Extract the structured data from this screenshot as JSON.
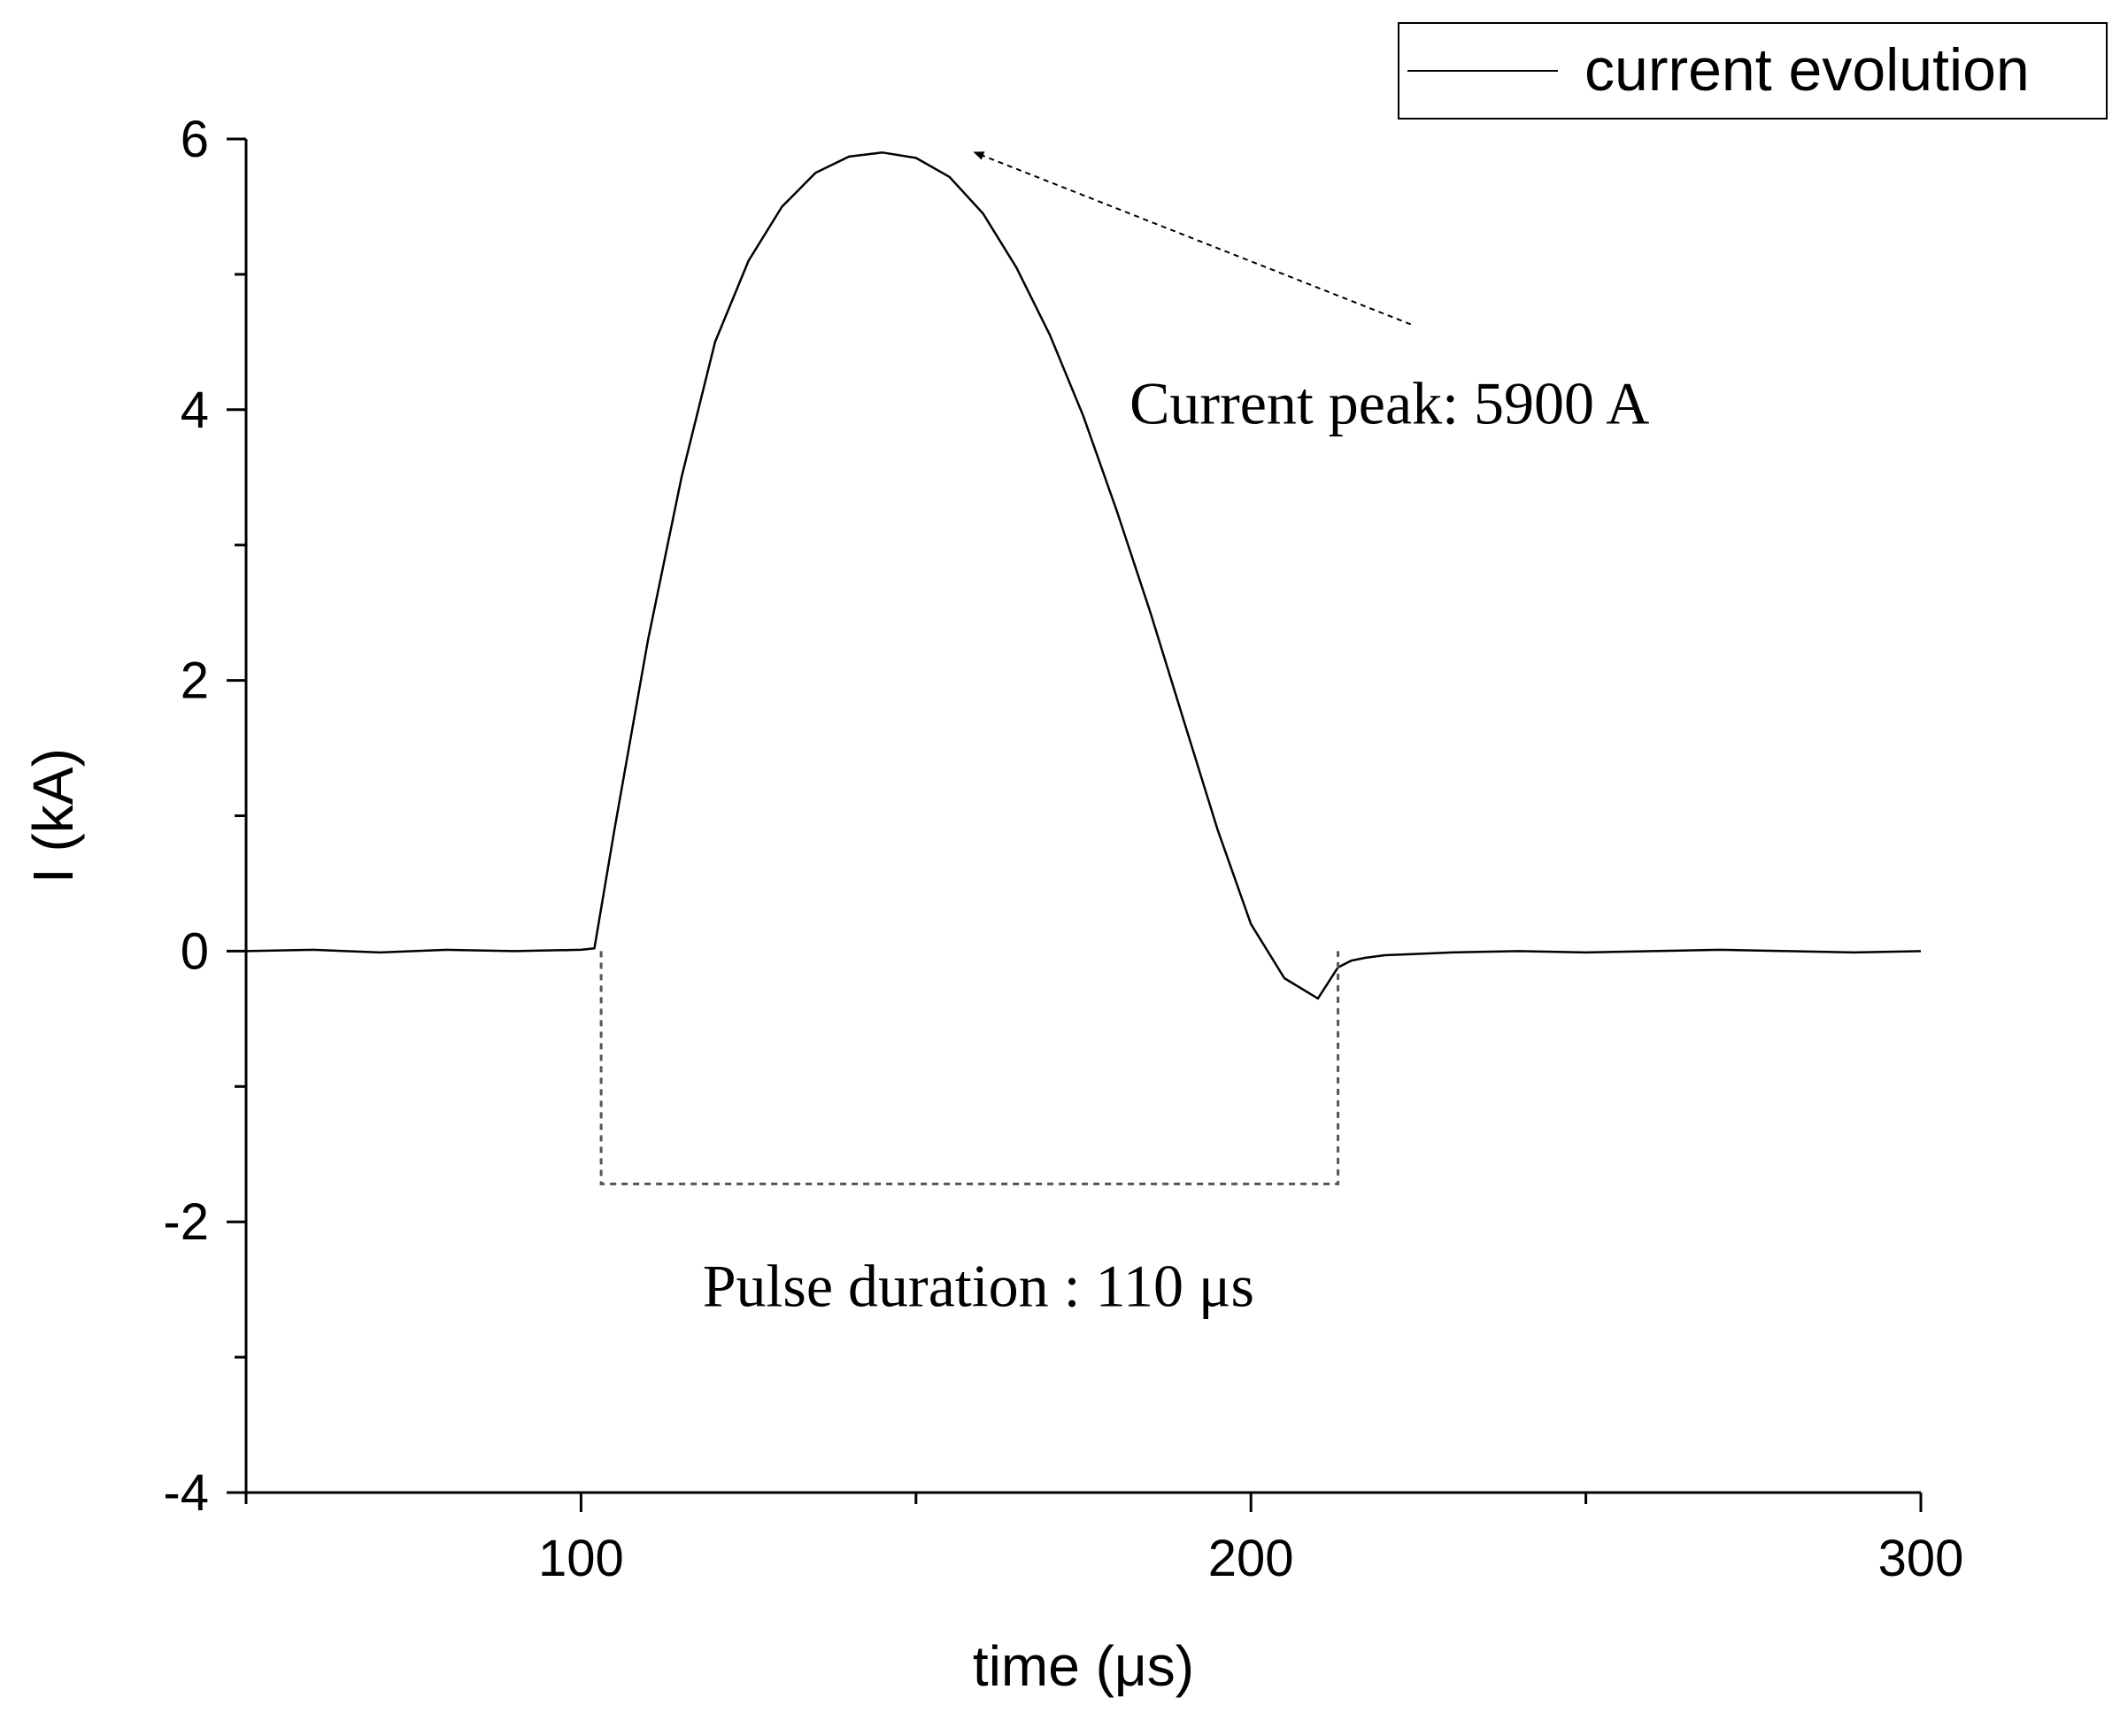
{
  "chart_data": {
    "type": "line",
    "title": "",
    "xlabel": "time (μs)",
    "ylabel": "I (kA)",
    "xlim": [
      50,
      300
    ],
    "ylim": [
      -4,
      6
    ],
    "x_ticks": [
      100,
      200,
      300
    ],
    "x_tick_labels": [
      "100",
      "200",
      "300"
    ],
    "x_minor_ticks": [
      50,
      150,
      250
    ],
    "y_ticks": [
      -4,
      -2,
      0,
      2,
      4,
      6
    ],
    "y_tick_labels": [
      "-4",
      "-2",
      "0",
      "2",
      "4",
      "6"
    ],
    "y_minor_ticks": [
      -3,
      -1,
      1,
      3,
      5
    ],
    "grid": false,
    "legend": {
      "position": "top-right",
      "entries": [
        "current evolution"
      ]
    },
    "series": [
      {
        "name": "current evolution",
        "color": "#000000",
        "x": [
          50,
          60,
          70,
          80,
          90,
          100,
          102,
          105,
          110,
          115,
          120,
          125,
          130,
          135,
          140,
          145,
          150,
          155,
          160,
          165,
          170,
          175,
          180,
          185,
          190,
          195,
          200,
          205,
          210,
          213,
          215,
          217,
          220,
          225,
          230,
          240,
          250,
          260,
          270,
          280,
          290,
          300
        ],
        "y": [
          0,
          0.01,
          -0.01,
          0.01,
          0,
          0.01,
          0.02,
          0.9,
          2.3,
          3.5,
          4.5,
          5.1,
          5.5,
          5.75,
          5.87,
          5.9,
          5.86,
          5.72,
          5.45,
          5.05,
          4.55,
          3.95,
          3.25,
          2.5,
          1.7,
          0.9,
          0.2,
          -0.2,
          -0.35,
          -0.12,
          -0.07,
          -0.05,
          -0.03,
          -0.02,
          -0.01,
          0,
          -0.01,
          0,
          0.01,
          0,
          -0.01,
          0
        ]
      }
    ],
    "annotations": [
      {
        "text": "Current peak: 5900 A",
        "points_to": {
          "x": 158,
          "y": 5.9
        },
        "text_at": {
          "x": 208,
          "y": 4.5
        },
        "style": "dashed-arrow"
      },
      {
        "text": "Pulse duration : 110 μs",
        "bracket": {
          "x_start": 103,
          "x_end": 213,
          "y": -1.72
        },
        "text_at": {
          "x": 158,
          "y": -2.35
        },
        "style": "dashed-bracket"
      }
    ]
  }
}
